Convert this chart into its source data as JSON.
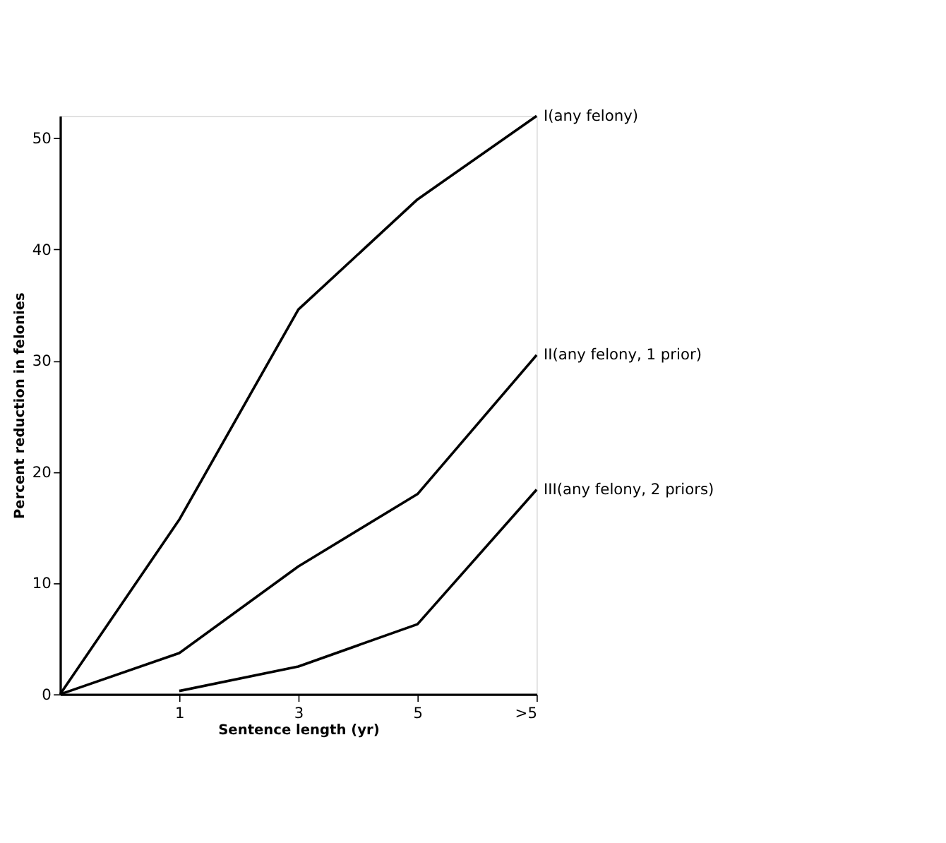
{
  "chart_data": {
    "type": "line",
    "xlabel": "Sentence length (yr)",
    "ylabel": "Percent reduction in felonies",
    "categories": [
      null,
      "1",
      "3",
      "5",
      ">5"
    ],
    "series": [
      {
        "name": "I(any felony)",
        "color": "#000000",
        "values": [
          0,
          15.7,
          34.6,
          44.5,
          52
        ]
      },
      {
        "name": "II(any felony, 1 prior)",
        "color": "#000000",
        "values": [
          0,
          3.7,
          11.5,
          18.0,
          30.5
        ]
      },
      {
        "name": "III(any felony, 2 priors)",
        "color": "#000000",
        "values": [
          null,
          0.3,
          2.5,
          6.3,
          18.4
        ]
      }
    ],
    "ylim": [
      0,
      52
    ],
    "yticks": [
      0,
      10,
      20,
      30,
      40,
      50
    ],
    "grid": false,
    "legend": false,
    "marker": "none",
    "line_style": "solid"
  }
}
